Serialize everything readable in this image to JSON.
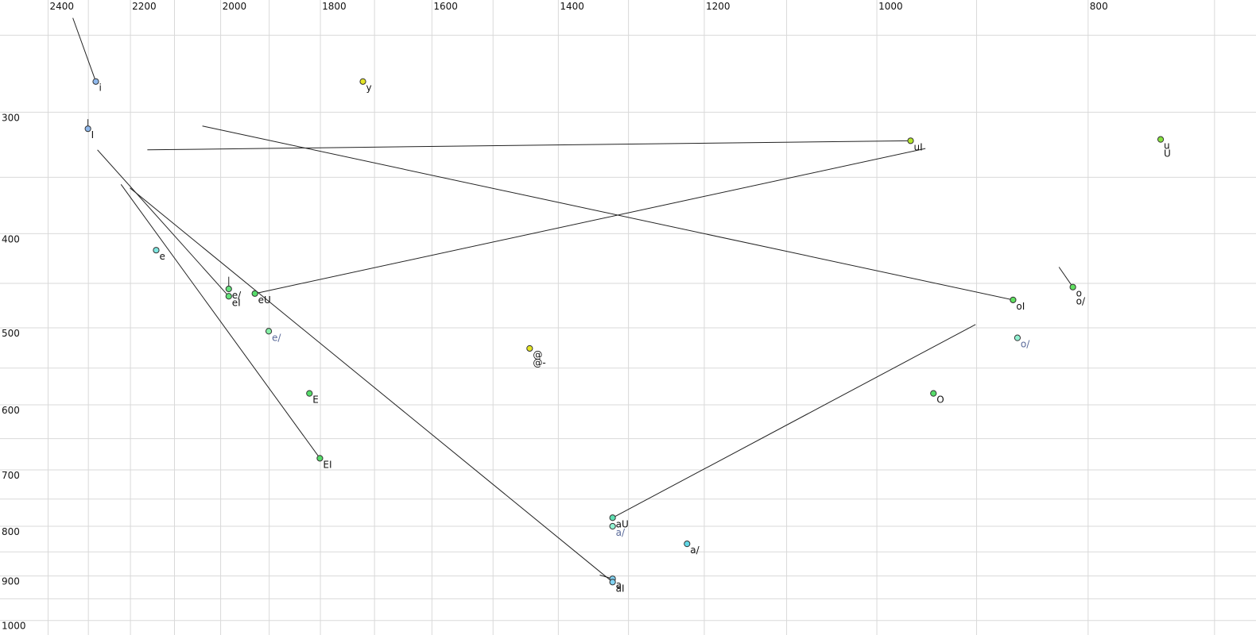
{
  "chart_data": {
    "type": "scatter",
    "log_x": true,
    "log_y": true,
    "xlim": [
      2525,
      670
    ],
    "ylim": [
      230,
      1035
    ],
    "xticks": [
      2400,
      2200,
      2000,
      1800,
      1600,
      1400,
      1200,
      1000,
      800
    ],
    "yticks": [
      300,
      400,
      500,
      600,
      700,
      800,
      900,
      1000
    ],
    "xgrid_minor": [
      2300,
      2100,
      1900,
      1700,
      1500,
      1300,
      1100,
      900,
      700
    ],
    "ygrid_minor": [
      250,
      350,
      450,
      550,
      650,
      750,
      850,
      950
    ],
    "grid": true,
    "points": [
      {
        "labels": [
          "i"
        ],
        "x": 2282,
        "y": 279,
        "color": "#8fb8ec",
        "from": {
          "x": 2338,
          "y": 240
        }
      },
      {
        "labels": [
          "I"
        ],
        "x": 2301,
        "y": 312,
        "color": "#8fb8ec",
        "from": {
          "x": 2301,
          "y": 305
        }
      },
      {
        "labels": [
          "y"
        ],
        "x": 1721,
        "y": 279,
        "color": "#e4e426"
      },
      {
        "labels": [
          "uI"
        ],
        "x": 965,
        "y": 321,
        "color": "#b4e62a",
        "from": {
          "x": 2161,
          "y": 328
        }
      },
      {
        "labels": [
          "u",
          "U"
        ],
        "x": 741,
        "y": 320,
        "color": "#86e23e"
      },
      {
        "labels": [
          "e"
        ],
        "x": 2141,
        "y": 416,
        "color": "#7ee6e0"
      },
      {
        "labels": [
          "e/"
        ],
        "x": 1983,
        "y": 456,
        "color": "#62e27a",
        "from": {
          "x": 1983,
          "y": 443
        }
      },
      {
        "labels": [
          "eI"
        ],
        "x": 1983,
        "y": 464,
        "color": "#62e27a",
        "from": {
          "x": 2278,
          "y": 328
        }
      },
      {
        "labels": [
          "eU"
        ],
        "x": 1929,
        "y": 461,
        "color": "#56dc6a",
        "from": {
          "x": 950,
          "y": 327
        }
      },
      {
        "labels": [
          "e/"
        ],
        "x": 1901,
        "y": 504,
        "color": "#86f0a6",
        "label_color": "#5a6a9a"
      },
      {
        "labels": [
          "E"
        ],
        "x": 1821,
        "y": 584,
        "color": "#56dc6a"
      },
      {
        "labels": [
          "EI"
        ],
        "x": 1801,
        "y": 681,
        "color": "#56dc6a",
        "from": {
          "x": 2222,
          "y": 356
        }
      },
      {
        "labels": [
          "@",
          "@-"
        ],
        "x": 1443,
        "y": 525,
        "color": "#e4e426"
      },
      {
        "labels": [
          "aU"
        ],
        "x": 1322,
        "y": 784,
        "color": "#5ee0b2",
        "from": {
          "x": 901,
          "y": 496
        }
      },
      {
        "labels": [
          "a/"
        ],
        "x": 1322,
        "y": 800,
        "color": "#92f2d2",
        "label_color": "#5a6a9a"
      },
      {
        "labels": [
          "a/"
        ],
        "x": 1222,
        "y": 834,
        "color": "#62d8e6"
      },
      {
        "labels": [
          "a"
        ],
        "x": 1322,
        "y": 906,
        "color": "#80d2f2",
        "from": {
          "x": 1340,
          "y": 898
        }
      },
      {
        "labels": [
          "aI"
        ],
        "x": 1322,
        "y": 913,
        "color": "#80d2f2",
        "from": {
          "x": 2201,
          "y": 359
        }
      },
      {
        "labels": [
          "oI"
        ],
        "x": 866,
        "y": 468,
        "color": "#60e060",
        "from": {
          "x": 2039,
          "y": 310
        }
      },
      {
        "labels": [
          "o",
          "o/"
        ],
        "x": 813,
        "y": 454,
        "color": "#60e060",
        "from": {
          "x": 825,
          "y": 433
        }
      },
      {
        "labels": [
          "o/"
        ],
        "x": 862,
        "y": 512,
        "color": "#92f2d2",
        "label_color": "#5a6a9a"
      },
      {
        "labels": [
          "O"
        ],
        "x": 942,
        "y": 584,
        "color": "#56dc6a"
      }
    ]
  }
}
